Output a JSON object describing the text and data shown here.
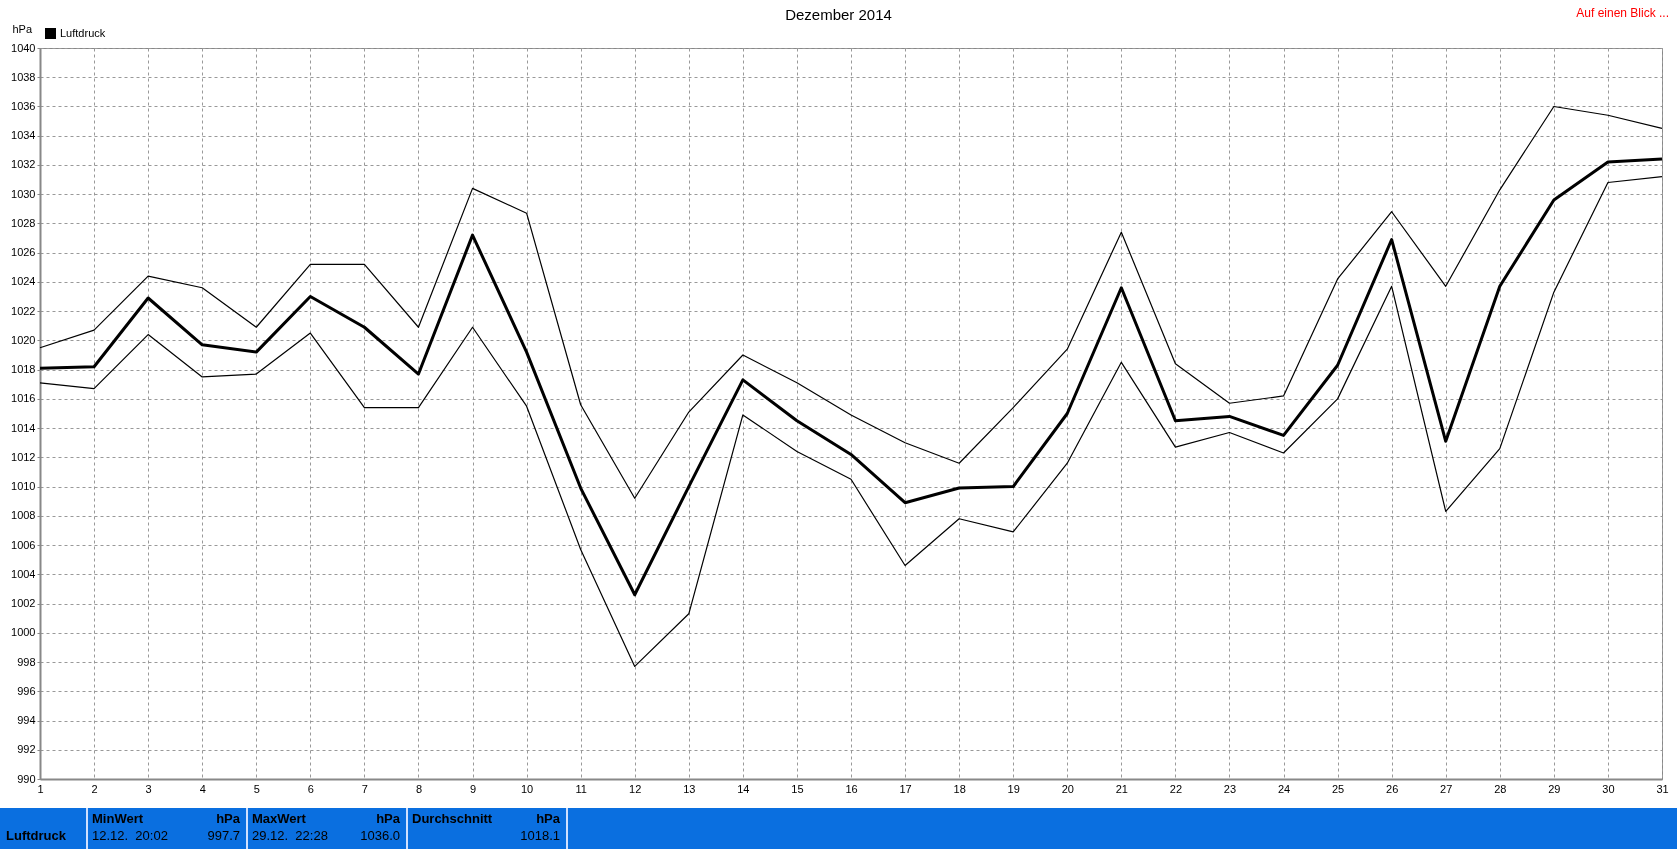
{
  "chart_data": {
    "type": "line",
    "title": "Dezember 2014",
    "ylabel": "hPa",
    "x": [
      1,
      2,
      3,
      4,
      5,
      6,
      7,
      8,
      9,
      10,
      11,
      12,
      13,
      14,
      15,
      16,
      17,
      18,
      19,
      20,
      21,
      22,
      23,
      24,
      25,
      26,
      27,
      28,
      29,
      30,
      31
    ],
    "series": [
      {
        "color": "#000000",
        "values": [
          1019.5,
          1020.7,
          1024.4,
          1023.6,
          1020.9,
          1025.2,
          1025.2,
          1020.9,
          1030.4,
          1028.7,
          1015.6,
          1009.2,
          1015.1,
          1019.0,
          1017.1,
          1014.9,
          1013.0,
          1011.6,
          1015.4,
          1019.4,
          1027.4,
          1018.4,
          1015.7,
          1016.2,
          1024.2,
          1028.8,
          1023.7,
          1030.3,
          1036.0,
          1035.4,
          1034.5
        ]
      },
      {
        "name": "Luftdruck",
        "color": "#000000",
        "values": [
          1018.1,
          1018.2,
          1022.9,
          1019.7,
          1019.2,
          1023.0,
          1020.9,
          1017.7,
          1027.2,
          1019.2,
          1009.9,
          1002.6,
          1010.0,
          1017.3,
          1014.5,
          1012.2,
          1008.9,
          1009.9,
          1010.0,
          1015.0,
          1023.6,
          1014.5,
          1014.8,
          1013.5,
          1018.3,
          1026.9,
          1013.1,
          1023.7,
          1029.6,
          1032.2,
          1032.4
        ]
      },
      {
        "color": "#000000",
        "values": [
          1017.1,
          1016.7,
          1020.4,
          1017.5,
          1017.7,
          1020.5,
          1015.4,
          1015.4,
          1020.9,
          1015.5,
          1005.7,
          997.7,
          1001.3,
          1014.9,
          1012.4,
          1010.5,
          1004.6,
          1007.8,
          1006.9,
          1011.6,
          1018.5,
          1012.7,
          1013.7,
          1012.3,
          1016.0,
          1023.7,
          1008.3,
          1012.6,
          1023.3,
          1030.8,
          1031.2
        ]
      }
    ],
    "xlim": [
      1,
      31
    ],
    "xticks": [
      1,
      2,
      3,
      4,
      5,
      6,
      7,
      8,
      9,
      10,
      11,
      12,
      13,
      14,
      15,
      16,
      17,
      18,
      19,
      20,
      21,
      22,
      23,
      24,
      25,
      26,
      27,
      28,
      29,
      30,
      31
    ],
    "ylim": [
      990,
      1040
    ],
    "yticks": [
      990,
      992,
      994,
      996,
      998,
      1000,
      1002,
      1004,
      1006,
      1008,
      1010,
      1012,
      1014,
      1016,
      1018,
      1020,
      1022,
      1024,
      1026,
      1028,
      1030,
      1032,
      1034,
      1036,
      1038,
      1040
    ],
    "grid": true,
    "legend": "top left",
    "marker": "none",
    "line_style": "solid",
    "annotations": [
      "Auf einen Blick ...",
      "Luftdruck",
      "MinWert",
      "hPa",
      "12.12.  20:02",
      "997.7",
      "MaxWert",
      "hPa",
      "29.12.  22:28",
      "1036.0",
      "Durchschnitt",
      "hPa",
      "1018.1"
    ]
  }
}
